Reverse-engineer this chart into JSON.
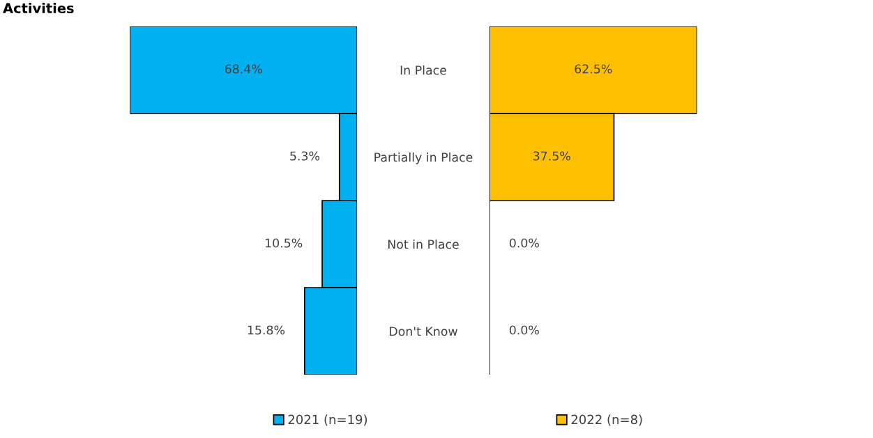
{
  "chart_data": [
    {
      "type": "bar",
      "title": "Activities",
      "orientation": "horizontal",
      "categories": [
        "In Place",
        "Partially in Place",
        "Not in Place",
        "Don't Know"
      ],
      "xlim": [
        68.4,
        0
      ],
      "legend": "bottom",
      "series": [
        {
          "name": "2021 (n=19)",
          "color": "#00b0f0",
          "values": [
            68.4,
            5.3,
            10.5,
            15.8
          ],
          "value_labels": [
            "68.4%",
            "5.3%",
            "10.5%",
            "15.8%"
          ]
        }
      ]
    },
    {
      "type": "bar",
      "orientation": "horizontal",
      "categories": [
        null,
        null,
        null,
        null
      ],
      "xlim": [
        0,
        62.5
      ],
      "legend": "bottom",
      "series": [
        {
          "name": "2022 (n=8)",
          "color": "#ffc000",
          "values": [
            62.5,
            37.5,
            0.0,
            0.0
          ],
          "value_labels": [
            "62.5%",
            "37.5%",
            "0.0%",
            "0.0%"
          ]
        }
      ]
    }
  ]
}
